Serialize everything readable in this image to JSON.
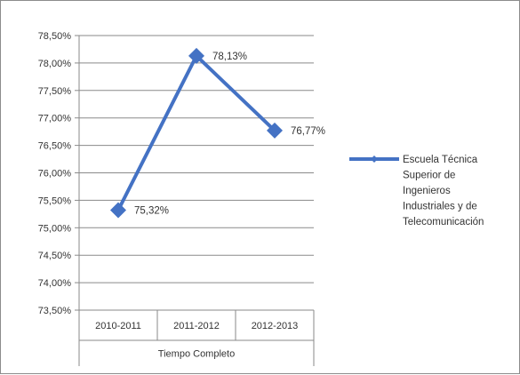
{
  "chart_data": {
    "type": "line",
    "categories": [
      "2010-2011",
      "2011-2012",
      "2012-2013"
    ],
    "group_label": "Tiempo Completo",
    "series": [
      {
        "name": "Escuela Técnica Superior de Ingenieros Industriales y de Telecomunicación",
        "name_lines": [
          "Escuela Técnica",
          "Superior de",
          "Ingenieros",
          "Industriales y de",
          "Telecomunicación"
        ],
        "values": [
          75.32,
          78.13,
          76.77
        ],
        "data_labels": [
          "75,32%",
          "78,13%",
          "76,77%"
        ],
        "color": "#4472c4"
      }
    ],
    "ylim": [
      73.5,
      78.5
    ],
    "y_ticks": [
      {
        "value": 78.5,
        "label": "78,50%"
      },
      {
        "value": 78.0,
        "label": "78,00%"
      },
      {
        "value": 77.5,
        "label": "77,50%"
      },
      {
        "value": 77.0,
        "label": "77,00%"
      },
      {
        "value": 76.5,
        "label": "76,50%"
      },
      {
        "value": 76.0,
        "label": "76,00%"
      },
      {
        "value": 75.5,
        "label": "75,50%"
      },
      {
        "value": 75.0,
        "label": "75,00%"
      },
      {
        "value": 74.5,
        "label": "74,50%"
      },
      {
        "value": 74.0,
        "label": "74,00%"
      },
      {
        "value": 73.5,
        "label": "73,50%"
      }
    ],
    "grid": true,
    "legend_position": "right",
    "title": "",
    "xlabel": "",
    "ylabel": ""
  }
}
